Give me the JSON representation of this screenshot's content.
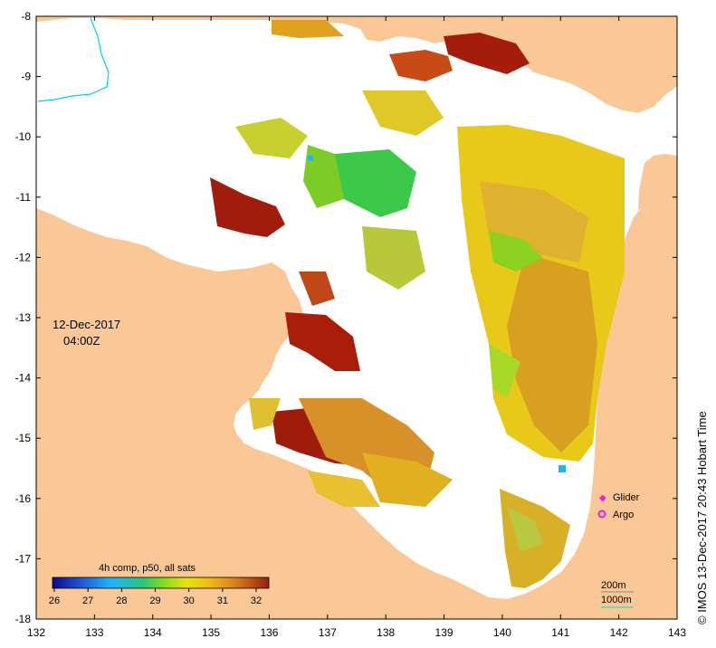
{
  "map": {
    "lon_ticks": [
      "132",
      "133",
      "134",
      "135",
      "136",
      "137",
      "138",
      "139",
      "140",
      "141",
      "142",
      "143"
    ],
    "lat_ticks": [
      "-8",
      "-9",
      "-10",
      "-11",
      "-12",
      "-13",
      "-14",
      "-15",
      "-16",
      "-17",
      "-18"
    ],
    "date_label": "12-Dec-2017",
    "time_label": "04:00Z",
    "side_credit": "© IMOS 13-Dec-2017 20:43 Hobart Time",
    "colorbar": {
      "title": "4h comp, p50, all sats",
      "tick_labels": [
        "26",
        "27",
        "28",
        "29",
        "30",
        "31",
        "32"
      ],
      "stops": [
        "#0a0a8c",
        "#1e50d0",
        "#1eb4ff",
        "#28c878",
        "#8cdc14",
        "#e6e60a",
        "#f0b414",
        "#d2781e",
        "#9b1e0a"
      ]
    },
    "legend": {
      "glider_label": "Glider",
      "argo_label": "Argo",
      "glider_color": "#e020e0",
      "argo_color": "#e020e0"
    },
    "contours": {
      "c200_label": "200m",
      "c1000_label": "1000m",
      "c1000_color": "#40e0c0"
    },
    "colors": {
      "land": "#fac896",
      "ocean": "#ffffff",
      "river": "#00d2e6"
    }
  }
}
